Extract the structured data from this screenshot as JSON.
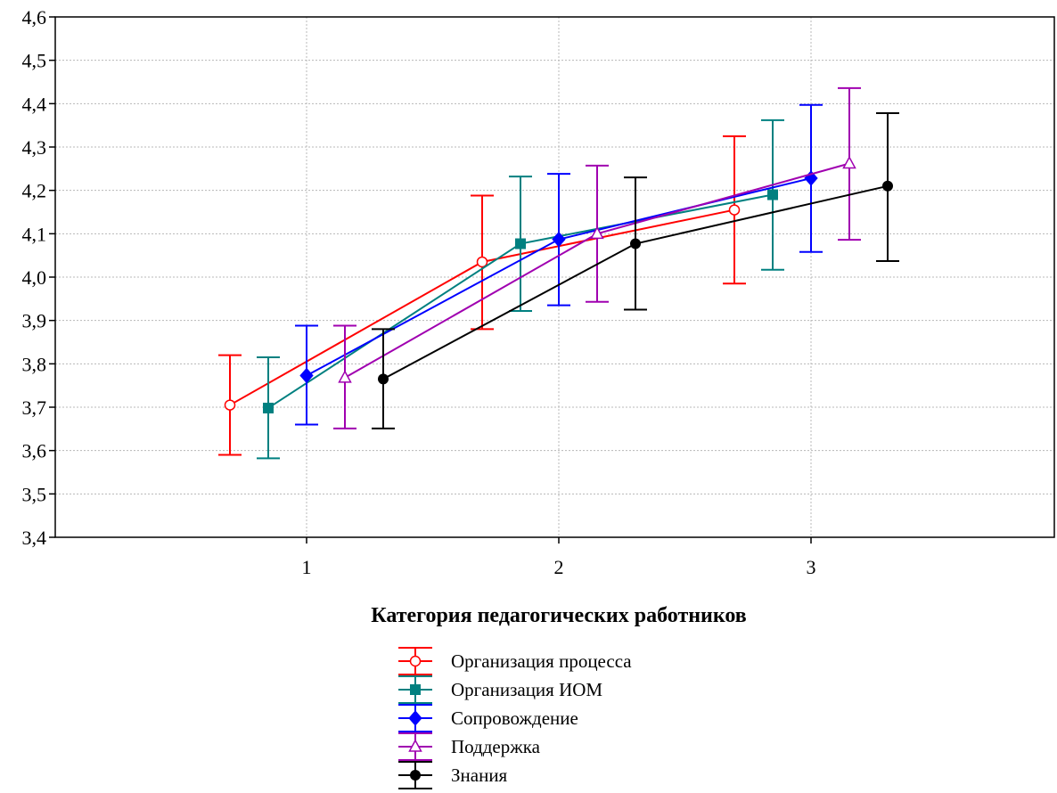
{
  "chart_data": {
    "type": "line",
    "title": "",
    "xlabel": "Категория педагогических работников",
    "ylabel": "",
    "categories": [
      "1",
      "2",
      "3"
    ],
    "x_ticks": [
      "1",
      "2",
      "3"
    ],
    "y_ticks": [
      "3,4",
      "3,5",
      "3,6",
      "3,7",
      "3,8",
      "3,9",
      "4,0",
      "4,1",
      "4,2",
      "4,3",
      "4,4",
      "4,5",
      "4,6"
    ],
    "ylim": [
      3.4,
      4.6
    ],
    "grid": true,
    "legend_position": "bottom-center",
    "error_bars": true,
    "series": [
      {
        "name": "Организация процесса",
        "color": "#ff0000",
        "marker": "open-circle",
        "values": [
          3.705,
          4.035,
          4.155
        ],
        "lower": [
          3.59,
          3.88,
          3.985
        ],
        "upper": [
          3.82,
          4.188,
          4.325
        ]
      },
      {
        "name": "Организация ИОМ",
        "color": "#008080",
        "marker": "filled-square",
        "values": [
          3.698,
          4.077,
          4.19
        ],
        "lower": [
          3.582,
          3.922,
          4.017
        ],
        "upper": [
          3.815,
          4.232,
          4.362
        ]
      },
      {
        "name": "Сопровождение",
        "color": "#0000ff",
        "marker": "filled-diamond",
        "values": [
          3.773,
          4.087,
          4.228
        ],
        "lower": [
          3.66,
          3.935,
          4.058
        ],
        "upper": [
          3.888,
          4.238,
          4.397
        ]
      },
      {
        "name": "Поддержка",
        "color": "#a000b0",
        "marker": "open-triangle",
        "values": [
          3.768,
          4.1,
          4.262
        ],
        "lower": [
          3.651,
          3.943,
          4.086
        ],
        "upper": [
          3.888,
          4.257,
          4.436
        ]
      },
      {
        "name": "Знания",
        "color": "#000000",
        "marker": "filled-circle",
        "values": [
          3.765,
          4.077,
          4.21
        ],
        "lower": [
          3.651,
          3.925,
          4.037
        ],
        "upper": [
          3.88,
          4.23,
          4.378
        ]
      }
    ]
  }
}
